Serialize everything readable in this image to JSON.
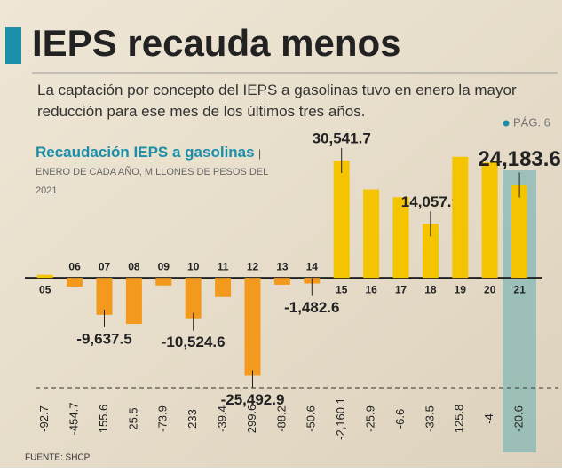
{
  "header": {
    "title": "IEPS recauda menos",
    "subtitle": "La captación por concepto del IEPS a gasolinas tuvo en enero la mayor reducción para ese mes de los últimos tres años.",
    "page_ref": "PÁG. 6"
  },
  "chart_data": {
    "type": "bar",
    "title": "Recaudación IEPS a gasolinas",
    "subtitle": "ENERO DE CADA AÑO, MILLONES DE PESOS DEL 2021",
    "categories": [
      "05",
      "06",
      "07",
      "08",
      "09",
      "10",
      "11",
      "12",
      "13",
      "14",
      "15",
      "16",
      "17",
      "18",
      "19",
      "20",
      "21"
    ],
    "values": [
      800,
      -2300,
      -9637.5,
      -12000,
      -2000,
      -10524.6,
      -5000,
      -25492.9,
      -1800,
      -1482.6,
      30541.7,
      23000,
      21000,
      14057.9,
      31500,
      30000,
      24183.6
    ],
    "value_labels": [
      null,
      null,
      "-9,637.5",
      null,
      null,
      "-10,524.6",
      null,
      "-25,492.9",
      null,
      "-1,482.6",
      "30,541.7",
      null,
      null,
      "14,057.9",
      null,
      null,
      "24,183.6"
    ],
    "changes": [
      -92.7,
      -454.7,
      155.6,
      25.5,
      -73.9,
      233.0,
      -39.4,
      299.6,
      -88.2,
      -50.6,
      {
        "value": -2160.1,
        "label": "-2,160.1"
      },
      -25.9,
      -6.6,
      -33.5,
      125.8,
      -4.0,
      -20.6
    ],
    "positive_color": "#f5c400",
    "negative_color": "#f39a1e",
    "ylim": [
      -27000,
      40000
    ]
  },
  "footer": {
    "source": "FUENTE: SHCP"
  }
}
